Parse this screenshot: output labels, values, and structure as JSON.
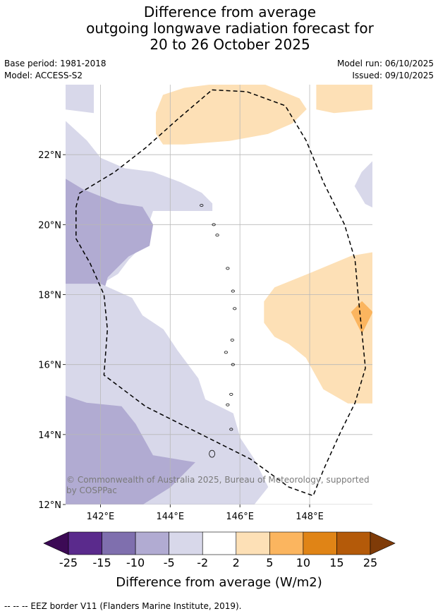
{
  "title_lines": [
    "Difference from average",
    "outgoing longwave radiation forecast for",
    "20 to 26 October 2025"
  ],
  "meta": {
    "base_period": "Base period: 1981-2018",
    "model": "Model: ACCESS-S2",
    "model_run": "Model run: 06/10/2025",
    "issued": "Issued: 09/10/2025"
  },
  "copyright": [
    "© Commonwealth of Australia 2025, Bureau of Meteorology, supported",
    "by COSPPac"
  ],
  "footnote": "--  --  -- EEZ border V11 (Flanders Marine Institute, 2019).",
  "chart_data": {
    "type": "heatmap",
    "title": "Difference from average outgoing longwave radiation forecast for 20 to 26 October 2025",
    "xlabel": "",
    "ylabel": "",
    "xlim": [
      141.0,
      149.8
    ],
    "ylim": [
      12.0,
      24.0
    ],
    "x_ticks": [
      142,
      144,
      146,
      148
    ],
    "x_tick_labels": [
      "142°E",
      "144°E",
      "146°E",
      "148°E"
    ],
    "y_ticks": [
      12,
      14,
      16,
      18,
      20,
      22
    ],
    "y_tick_labels": [
      "12°N",
      "14°N",
      "16°N",
      "18°N",
      "20°N",
      "22°N"
    ],
    "grid": true,
    "colorbar": {
      "label": "Difference from average (W/m2)",
      "ticks": [
        "-25",
        "-15",
        "-10",
        "-5",
        "-2",
        "2",
        "5",
        "10",
        "15",
        "25"
      ],
      "boundaries": [
        -25,
        -15,
        -10,
        -5,
        -2,
        2,
        5,
        10,
        15,
        25
      ],
      "colors": [
        "#3c0a55",
        "#5a2a8c",
        "#7f6fae",
        "#b1abd2",
        "#d8d8ea",
        "#ffffff",
        "#fde0b6",
        "#fbb55f",
        "#e08416",
        "#b45a09",
        "#7f3b08"
      ],
      "extend": "both"
    },
    "regions": [
      {
        "class": "-5 to -2",
        "color": "#d8d8ea",
        "coords": [
          [
            141,
            24
          ],
          [
            141.8,
            24
          ],
          [
            141.8,
            23.2
          ],
          [
            141,
            23.3
          ]
        ]
      },
      {
        "class": "-5 to -2",
        "color": "#d8d8ea",
        "coords": [
          [
            141,
            22.95
          ],
          [
            141.6,
            22.4
          ],
          [
            142.0,
            21.9
          ],
          [
            142.7,
            21.6
          ],
          [
            143.5,
            21.5
          ],
          [
            144.3,
            21.2
          ],
          [
            144.9,
            20.9
          ],
          [
            145.2,
            20.6
          ],
          [
            145.2,
            20.4
          ],
          [
            143.5,
            20.4
          ],
          [
            143.4,
            20.1
          ],
          [
            143.4,
            19.8
          ],
          [
            143.2,
            19.4
          ],
          [
            142.8,
            19.0
          ],
          [
            142.5,
            18.6
          ],
          [
            142.0,
            18.3
          ],
          [
            141.0,
            18.3
          ]
        ]
      },
      {
        "class": "-10 to -5",
        "color": "#b1abd2",
        "coords": [
          [
            141,
            21.3
          ],
          [
            141.5,
            21.0
          ],
          [
            142.5,
            20.6
          ],
          [
            143.2,
            20.5
          ],
          [
            143.5,
            20.0
          ],
          [
            143.4,
            19.4
          ],
          [
            142.8,
            19.1
          ],
          [
            142.2,
            18.5
          ],
          [
            142.0,
            17.8
          ],
          [
            141.0,
            17.8
          ]
        ]
      },
      {
        "class": "-5 to -2",
        "color": "#d8d8ea",
        "coords": [
          [
            141,
            18.3
          ],
          [
            142.0,
            18.3
          ],
          [
            142.9,
            17.9
          ],
          [
            143.2,
            17.4
          ],
          [
            143.8,
            17.0
          ],
          [
            144.2,
            16.4
          ],
          [
            144.8,
            15.6
          ],
          [
            145.0,
            15.0
          ],
          [
            145.8,
            14.6
          ],
          [
            146.0,
            13.9
          ],
          [
            146.4,
            13.3
          ],
          [
            146.8,
            12.5
          ],
          [
            146.4,
            12.0
          ],
          [
            141,
            12.0
          ]
        ]
      },
      {
        "class": "-10 to -5",
        "color": "#b1abd2",
        "coords": [
          [
            141,
            15.1
          ],
          [
            141.6,
            14.9
          ],
          [
            142.6,
            14.8
          ],
          [
            143.0,
            14.3
          ],
          [
            143.5,
            13.4
          ],
          [
            144.7,
            13.2
          ],
          [
            144.0,
            12.5
          ],
          [
            143.2,
            12.0
          ],
          [
            141,
            12.0
          ]
        ]
      },
      {
        "class": "-5 to -2",
        "color": "#d8d8ea",
        "coords": [
          [
            149.8,
            21.8
          ],
          [
            149.5,
            21.5
          ],
          [
            149.3,
            21.1
          ],
          [
            149.6,
            20.6
          ],
          [
            149.8,
            20.5
          ]
        ]
      },
      {
        "class": "2 to 5",
        "color": "#fde0b6",
        "coords": [
          [
            143.8,
            23.7
          ],
          [
            144.4,
            23.9
          ],
          [
            145.2,
            24.0
          ],
          [
            146.7,
            24.0
          ],
          [
            147.2,
            23.8
          ],
          [
            147.7,
            23.6
          ],
          [
            147.9,
            23.3
          ],
          [
            147.5,
            22.9
          ],
          [
            146.8,
            22.6
          ],
          [
            145.7,
            22.4
          ],
          [
            144.4,
            22.3
          ],
          [
            143.8,
            22.3
          ],
          [
            143.6,
            22.6
          ],
          [
            143.6,
            23.2
          ]
        ]
      },
      {
        "class": "2 to 5",
        "color": "#fde0b6",
        "coords": [
          [
            148.2,
            24.0
          ],
          [
            149.8,
            24.0
          ],
          [
            149.8,
            23.3
          ],
          [
            148.7,
            23.2
          ],
          [
            148.2,
            23.3
          ]
        ]
      },
      {
        "class": "2 to 5",
        "color": "#fde0b6",
        "coords": [
          [
            149.8,
            19.2
          ],
          [
            149.2,
            19.1
          ],
          [
            148.0,
            18.6
          ],
          [
            147.0,
            18.2
          ],
          [
            146.7,
            17.8
          ],
          [
            146.7,
            17.2
          ],
          [
            147.0,
            16.8
          ],
          [
            147.4,
            16.6
          ],
          [
            147.9,
            16.2
          ],
          [
            148.4,
            15.3
          ],
          [
            149.1,
            14.9
          ],
          [
            149.8,
            14.9
          ]
        ]
      },
      {
        "class": "5 to 10",
        "color": "#fbb55f",
        "coords": [
          [
            149.2,
            17.5
          ],
          [
            149.5,
            17.8
          ],
          [
            149.8,
            17.5
          ],
          [
            149.5,
            16.9
          ]
        ]
      }
    ],
    "islands": [
      [
        145.2,
        13.45
      ],
      [
        145.75,
        14.15
      ],
      [
        145.65,
        14.85
      ],
      [
        145.75,
        15.15
      ],
      [
        145.6,
        16.35
      ],
      [
        145.8,
        16.0
      ],
      [
        145.78,
        16.7
      ],
      [
        145.85,
        17.6
      ],
      [
        145.8,
        18.1
      ],
      [
        145.65,
        18.75
      ],
      [
        145.35,
        19.7
      ],
      [
        145.25,
        20.0
      ],
      [
        144.9,
        20.55
      ]
    ],
    "eez_border": [
      [
        145.2,
        23.85
      ],
      [
        146.2,
        23.8
      ],
      [
        147.3,
        23.4
      ],
      [
        147.9,
        22.4
      ],
      [
        148.4,
        21.2
      ],
      [
        149.0,
        20.0
      ],
      [
        149.3,
        19.0
      ],
      [
        149.4,
        17.9
      ],
      [
        149.5,
        16.9
      ],
      [
        149.6,
        15.9
      ],
      [
        149.3,
        14.9
      ],
      [
        148.9,
        14.1
      ],
      [
        148.4,
        13.0
      ],
      [
        148.1,
        12.25
      ],
      [
        147.4,
        12.5
      ],
      [
        146.3,
        13.3
      ],
      [
        144.7,
        14.1
      ],
      [
        143.3,
        14.8
      ],
      [
        142.1,
        15.7
      ],
      [
        142.2,
        17.0
      ],
      [
        142.1,
        18.0
      ],
      [
        141.7,
        18.9
      ],
      [
        141.3,
        19.6
      ],
      [
        141.3,
        20.5
      ],
      [
        141.4,
        20.9
      ],
      [
        142.4,
        21.5
      ],
      [
        143.3,
        22.2
      ],
      [
        144.2,
        23.0
      ],
      [
        145.2,
        23.85
      ]
    ]
  }
}
